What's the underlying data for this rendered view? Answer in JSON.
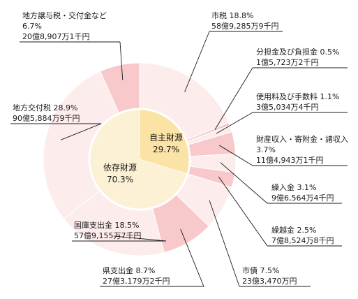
{
  "chart_data": {
    "type": "pie",
    "title": "",
    "inner": [
      {
        "name": "自主財源",
        "value": 29.7,
        "value_label": "29.7%",
        "color": "#fbe3a6"
      },
      {
        "name": "依存財源",
        "value": 70.3,
        "value_label": "70.3%",
        "color": "#fdf1d5"
      }
    ],
    "outer": [
      {
        "name": "市税",
        "percent": 18.8,
        "amount": "58億9,285万9千円",
        "group": "自主財源",
        "color": "#fdecec"
      },
      {
        "name": "分担金及び負担金",
        "percent": 0.5,
        "amount": "1億5,723万2千円",
        "group": "自主財源",
        "color": "#f7c9cb"
      },
      {
        "name": "使用料及び手数料",
        "percent": 1.1,
        "amount": "3億5,034万4千円",
        "group": "自主財源",
        "color": "#fdecec"
      },
      {
        "name": "財産収入・寄附金・諸収入",
        "percent": 3.7,
        "amount": "11億4,943万1千円",
        "group": "自主財源",
        "color": "#f7c9cb"
      },
      {
        "name": "繰入金",
        "percent": 3.1,
        "amount": "9億6,564万4千円",
        "group": "自主財源",
        "color": "#fdecec"
      },
      {
        "name": "繰越金",
        "percent": 2.5,
        "amount": "7億8,524万8千円",
        "group": "自主財源",
        "color": "#f7c9cb"
      },
      {
        "name": "市債",
        "percent": 7.5,
        "amount": "23億3,470万円",
        "group": "依存財源",
        "color": "#fdecec"
      },
      {
        "name": "県支出金",
        "percent": 8.7,
        "amount": "27億3,179万2千円",
        "group": "依存財源",
        "color": "#f7c9cb"
      },
      {
        "name": "国庫支出金",
        "percent": 18.5,
        "amount": "57億9,155万7千円",
        "group": "依存財源",
        "color": "#fdecec"
      },
      {
        "name": "地方交付税",
        "percent": 28.9,
        "amount": "90億5,884万9千円",
        "group": "依存財源",
        "color": "#fdecec"
      },
      {
        "name": "地方譲与税・交付金など",
        "percent": 6.7,
        "amount": "20億8,907万1千円",
        "group": "依存財源",
        "color": "#f7c9cb"
      }
    ]
  }
}
